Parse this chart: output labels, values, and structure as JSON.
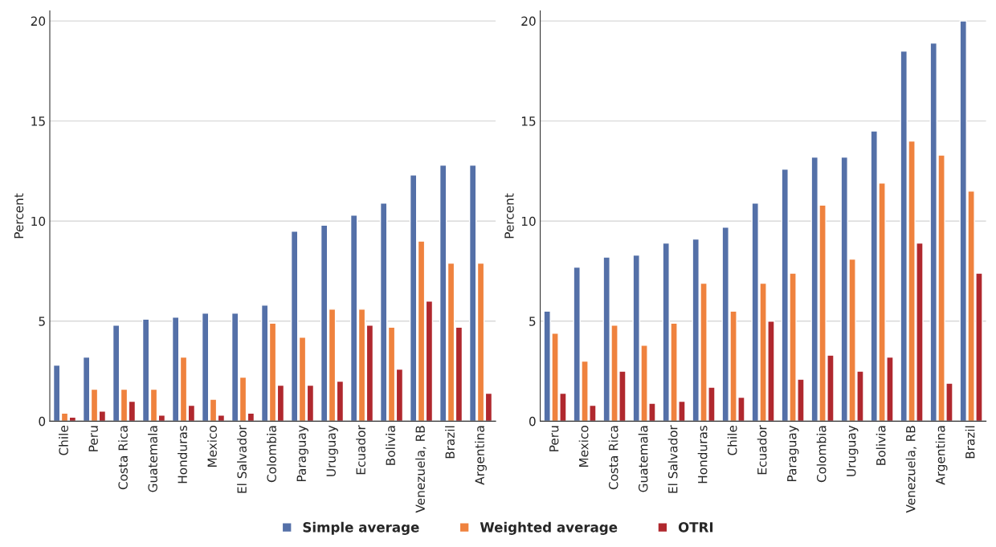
{
  "chart_data": [
    {
      "type": "bar",
      "ylabel": "Percent",
      "categories": [
        "Chile",
        "Peru",
        "Costa Rica",
        "Guatemala",
        "Honduras",
        "Mexico",
        "El Salvador",
        "Colombia",
        "Paraguay",
        "Uruguay",
        "Ecuador",
        "Bolivia",
        "Venezuela, RB",
        "Brazil",
        "Argentina"
      ],
      "series": [
        {
          "name": "Simple average",
          "color": "#5470a8",
          "values": [
            2.8,
            3.2,
            4.8,
            5.1,
            5.2,
            5.4,
            5.4,
            5.8,
            9.5,
            9.8,
            10.3,
            10.9,
            12.3,
            12.8,
            12.8
          ]
        },
        {
          "name": "Weighted average",
          "color": "#ef823e",
          "values": [
            0.4,
            1.6,
            1.6,
            1.6,
            3.2,
            1.1,
            2.2,
            4.9,
            4.2,
            5.6,
            5.6,
            4.7,
            9.0,
            7.9,
            7.9
          ]
        },
        {
          "name": "OTRI",
          "color": "#b0282e",
          "values": [
            0.2,
            0.5,
            1.0,
            0.3,
            0.8,
            0.3,
            0.4,
            1.8,
            1.8,
            2.0,
            4.8,
            2.6,
            6.0,
            4.7,
            1.4
          ]
        }
      ],
      "ylim": [
        0,
        20.5
      ],
      "yticks": [
        0,
        5,
        10,
        15,
        20
      ],
      "grid": "y",
      "legend": "bottom"
    },
    {
      "type": "bar",
      "ylabel": "Percent",
      "categories": [
        "Peru",
        "Mexico",
        "Costa Rica",
        "Guatemala",
        "El Salvador",
        "Honduras",
        "Chile",
        "Ecuador",
        "Paraguay",
        "Colombia",
        "Uruguay",
        "Bolivia",
        "Venezuela, RB",
        "Argentina",
        "Brazil"
      ],
      "series": [
        {
          "name": "Simple average",
          "color": "#5470a8",
          "values": [
            5.5,
            7.7,
            8.2,
            8.3,
            8.9,
            9.1,
            9.7,
            10.9,
            12.6,
            13.2,
            13.2,
            14.5,
            18.5,
            18.9,
            20.0
          ]
        },
        {
          "name": "Weighted average",
          "color": "#ef823e",
          "values": [
            4.4,
            3.0,
            4.8,
            3.8,
            4.9,
            6.9,
            5.5,
            6.9,
            7.4,
            10.8,
            8.1,
            11.9,
            14.0,
            13.3,
            11.5
          ]
        },
        {
          "name": "OTRI",
          "color": "#b0282e",
          "values": [
            1.4,
            0.8,
            2.5,
            0.9,
            1.0,
            1.7,
            1.2,
            5.0,
            2.1,
            3.3,
            2.5,
            3.2,
            8.9,
            1.9,
            7.4
          ]
        }
      ],
      "ylim": [
        0,
        20.5
      ],
      "yticks": [
        0,
        5,
        10,
        15,
        20
      ],
      "grid": "y",
      "legend": "bottom"
    }
  ]
}
